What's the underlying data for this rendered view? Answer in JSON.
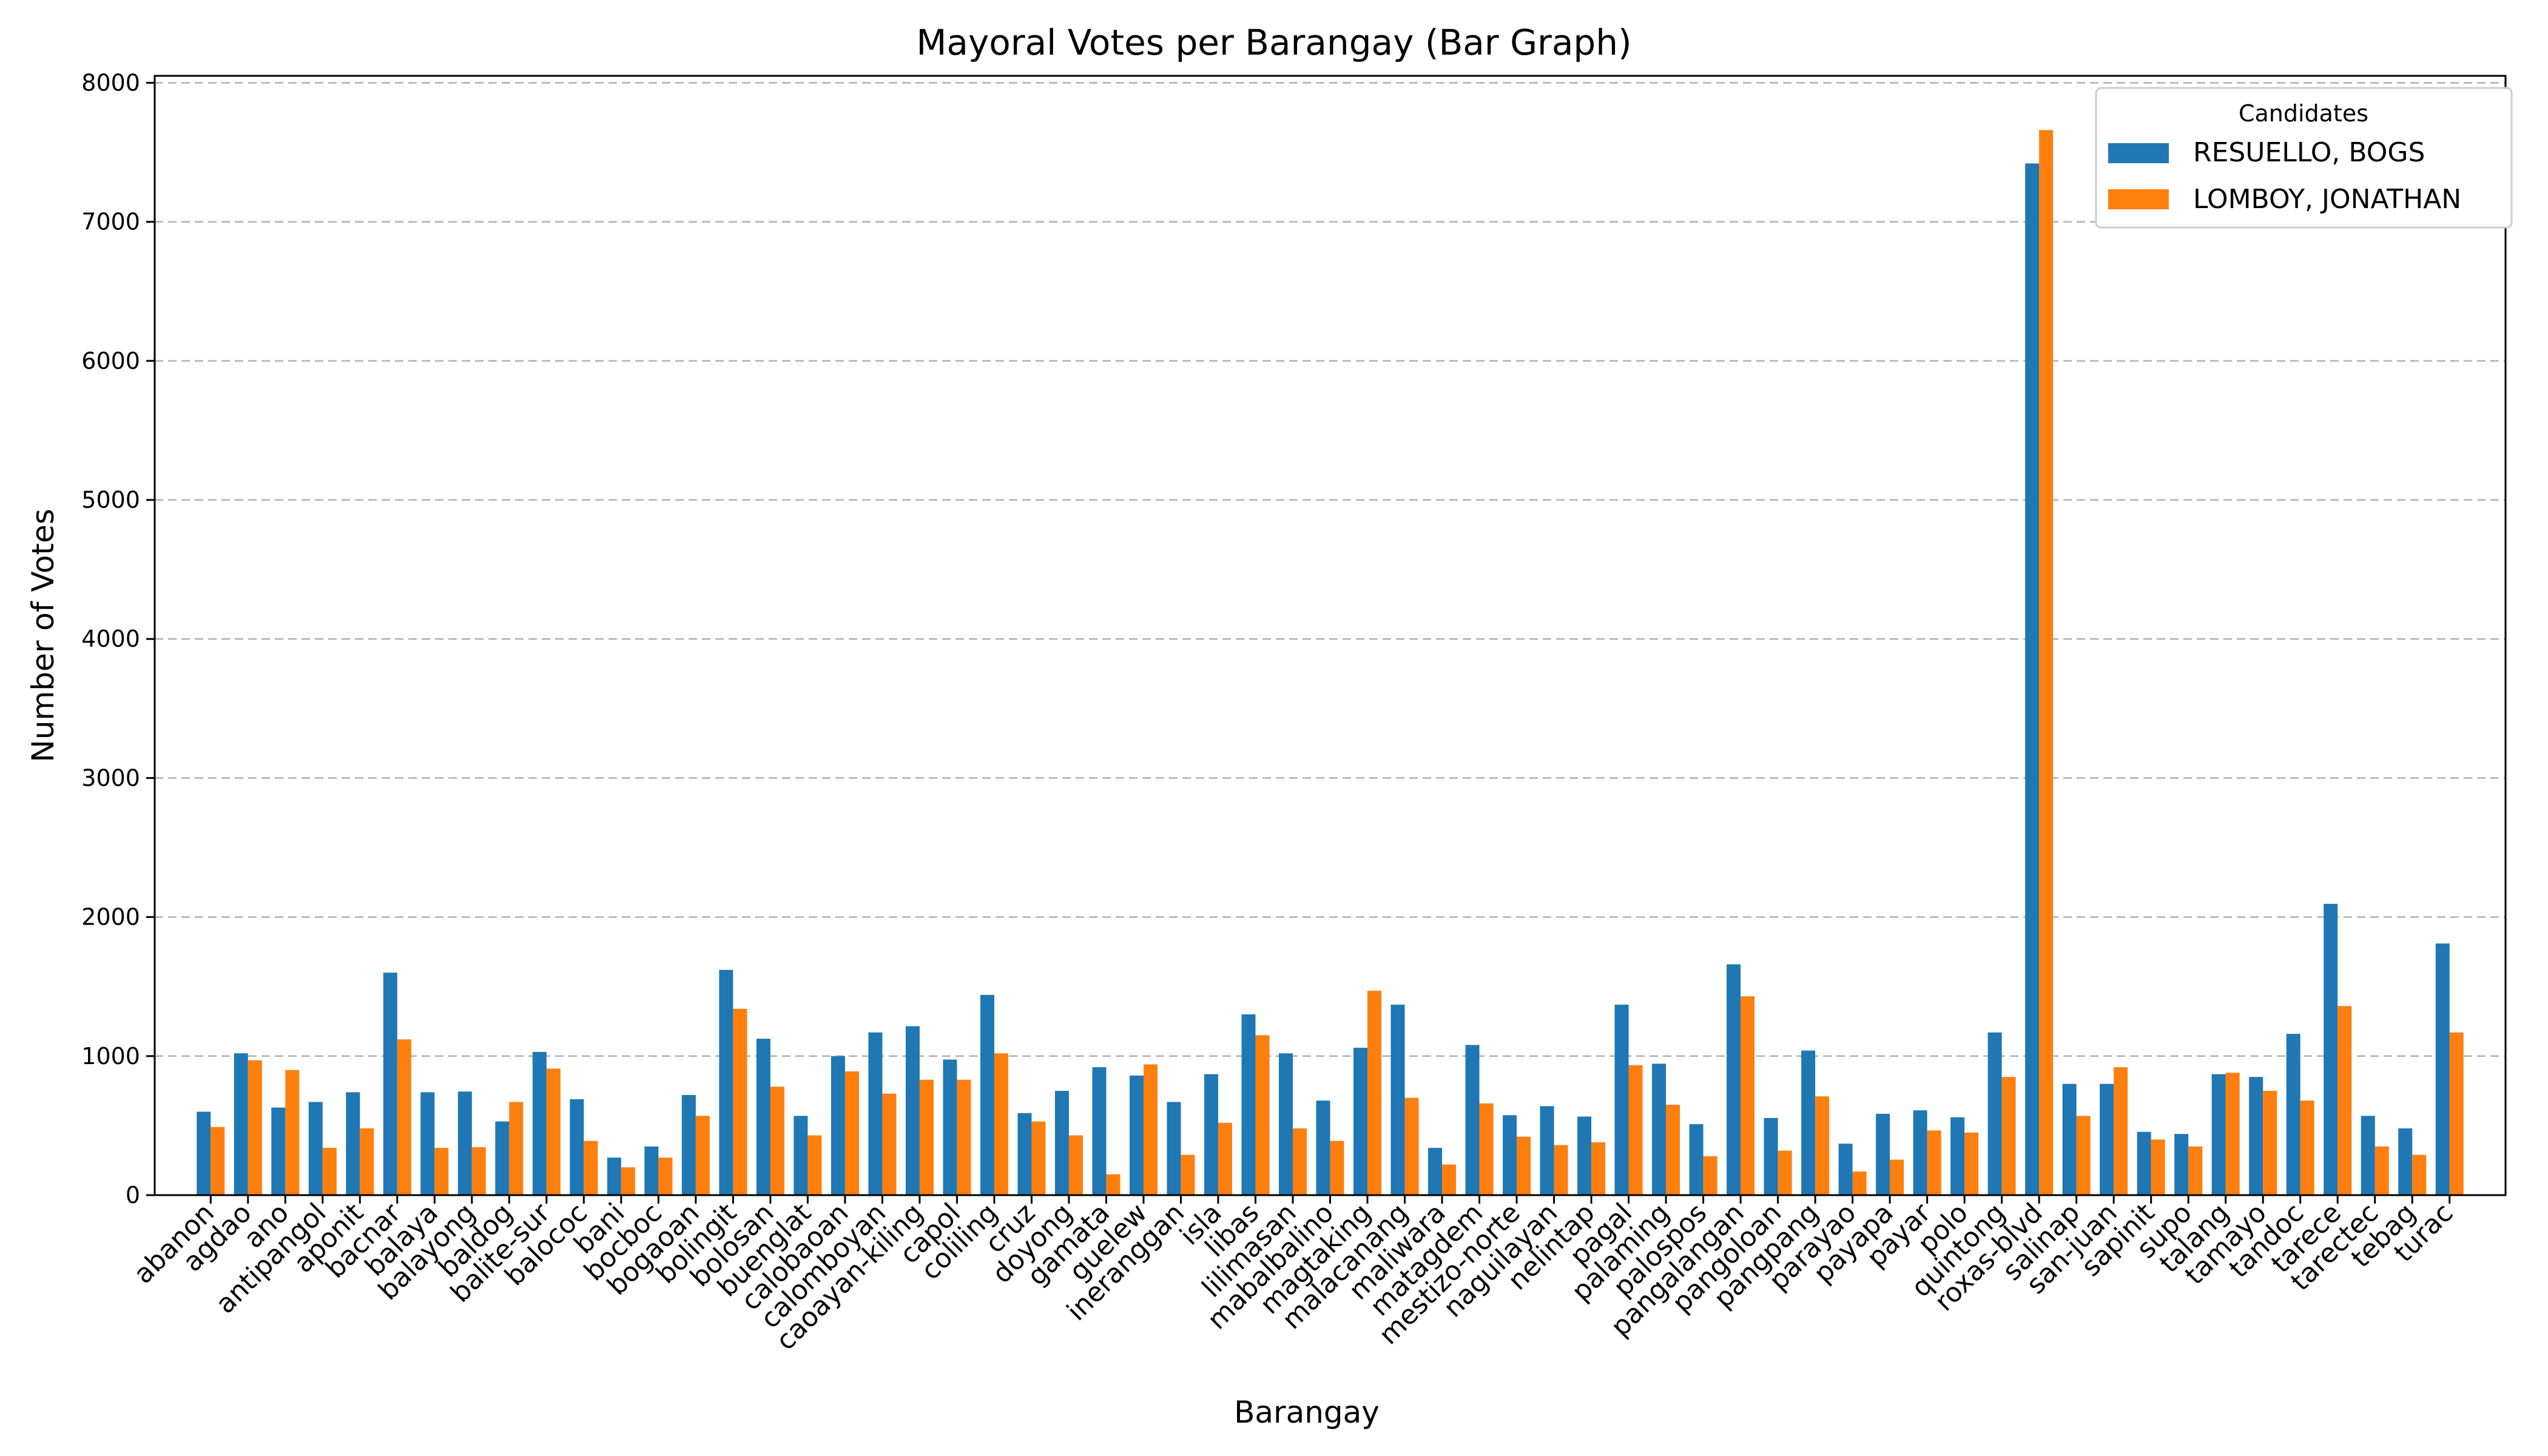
{
  "chart_data": {
    "type": "bar",
    "title": "Mayoral Votes per Barangay (Bar Graph)",
    "xlabel": "Barangay",
    "ylabel": "Number of Votes",
    "ylim": [
      0,
      8050
    ],
    "yticks": [
      0,
      1000,
      2000,
      3000,
      4000,
      5000,
      6000,
      7000,
      8000
    ],
    "grid": "y-dashed",
    "legend": {
      "title": "Candidates",
      "position": "top-right"
    },
    "categories": [
      "abanon",
      "agdao",
      "ano",
      "antipangol",
      "aponit",
      "bacnar",
      "balaya",
      "balayong",
      "baldog",
      "balite-sur",
      "balococ",
      "bani",
      "bocboc",
      "bogaoan",
      "bolingit",
      "bolosan",
      "buenglat",
      "calobaoan",
      "calomboyan",
      "caoayan-kiling",
      "capol",
      "coliling",
      "cruz",
      "doyong",
      "gamata",
      "guelew",
      "ineranggan",
      "isla",
      "libas",
      "lilimasan",
      "mabalbalino",
      "magtaking",
      "malacanang",
      "maliwara",
      "matagdem",
      "mestizo-norte",
      "naguilayan",
      "nelintap",
      "pagal",
      "palaming",
      "palospos",
      "pangalangan",
      "pangoloan",
      "pangpang",
      "parayao",
      "payapa",
      "payar",
      "polo",
      "quintong",
      "roxas-blvd",
      "salinap",
      "san-juan",
      "sapinit",
      "supo",
      "talang",
      "tamayo",
      "tandoc",
      "tarece",
      "tarectec",
      "tebag",
      "turac"
    ],
    "series": [
      {
        "name": "RESUELLO, BOGS",
        "color": "#1f77b4",
        "values": [
          600,
          1020,
          630,
          670,
          740,
          1600,
          740,
          745,
          530,
          1030,
          690,
          270,
          350,
          720,
          1620,
          1125,
          570,
          1000,
          1170,
          1215,
          975,
          1440,
          590,
          750,
          920,
          860,
          670,
          870,
          1300,
          1020,
          680,
          1060,
          1370,
          340,
          1080,
          575,
          640,
          565,
          1370,
          945,
          510,
          1660,
          555,
          1040,
          370,
          585,
          610,
          560,
          1170,
          7420,
          800,
          800,
          455,
          440,
          870,
          850,
          1160,
          2095,
          570,
          480,
          1810
        ]
      },
      {
        "name": "LOMBOY, JONATHAN",
        "color": "#ff7f0e",
        "values": [
          490,
          970,
          900,
          340,
          480,
          1120,
          340,
          345,
          670,
          910,
          390,
          200,
          270,
          570,
          1340,
          780,
          430,
          890,
          730,
          830,
          830,
          1020,
          530,
          430,
          150,
          940,
          290,
          520,
          1150,
          480,
          390,
          1470,
          700,
          220,
          660,
          420,
          360,
          380,
          935,
          650,
          280,
          1430,
          320,
          710,
          170,
          255,
          465,
          450,
          850,
          7660,
          570,
          920,
          400,
          350,
          880,
          750,
          680,
          1360,
          350,
          290,
          1170
        ]
      }
    ]
  }
}
